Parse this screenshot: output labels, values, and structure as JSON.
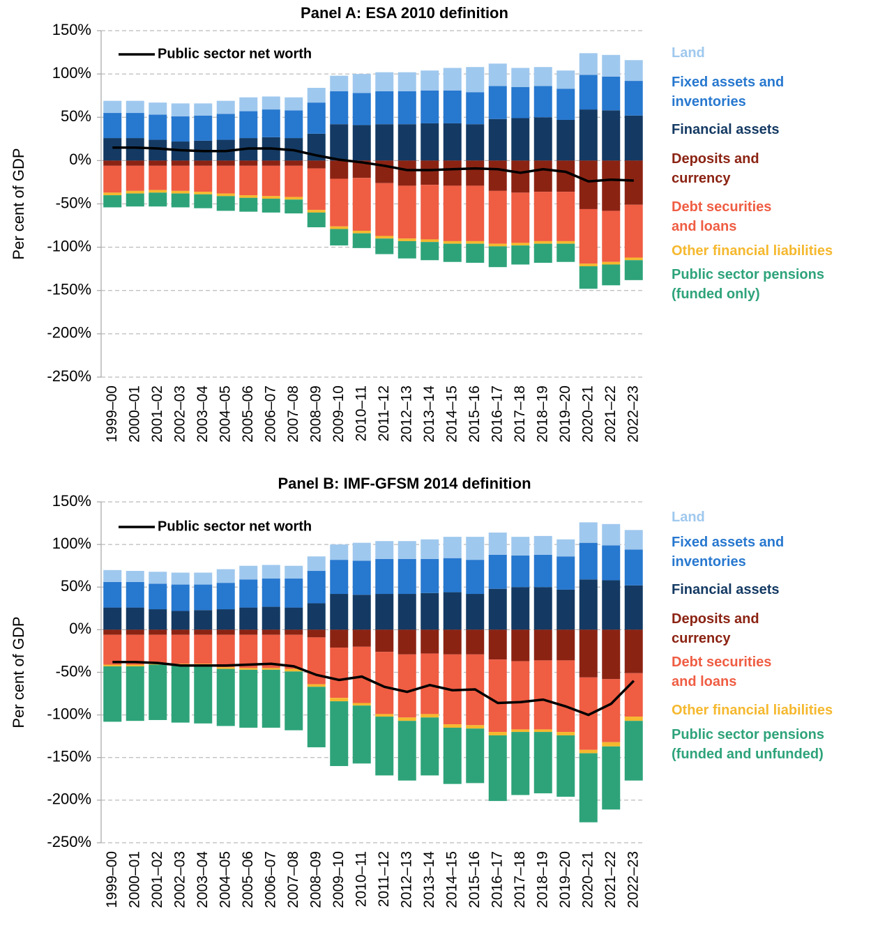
{
  "chart_data": [
    {
      "type": "bar",
      "stacked": true,
      "title": "Panel A: ESA 2010 definition",
      "y_label": "Per cent of GDP",
      "categories": [
        "1999–00",
        "2000–01",
        "2001–02",
        "2002–03",
        "2003–04",
        "2004–05",
        "2005–06",
        "2006–07",
        "2007–08",
        "2008–09",
        "2009–10",
        "2010–11",
        "2011–12",
        "2012–13",
        "2013–14",
        "2014–15",
        "2015–16",
        "2016–17",
        "2017–18",
        "2018–19",
        "2019–20",
        "2020–21",
        "2021–22",
        "2022–23"
      ],
      "series": [
        {
          "name": "Financial assets",
          "color": "#143a63",
          "values": [
            26,
            26,
            24,
            22,
            23,
            24,
            26,
            27,
            26,
            31,
            42,
            41,
            42,
            42,
            43,
            43,
            42,
            48,
            49,
            50,
            47,
            59,
            58,
            52
          ]
        },
        {
          "name": "Fixed assets and\ninventories",
          "color": "#2778cf",
          "values": [
            29,
            29,
            29,
            29,
            29,
            30,
            31,
            32,
            32,
            36,
            38,
            37,
            38,
            38,
            38,
            38,
            37,
            38,
            36,
            36,
            36,
            40,
            39,
            40
          ]
        },
        {
          "name": "Land",
          "color": "#9fc8ee",
          "values": [
            14,
            14,
            14,
            15,
            14,
            15,
            16,
            15,
            15,
            17,
            18,
            22,
            22,
            22,
            23,
            26,
            29,
            26,
            22,
            22,
            21,
            25,
            25,
            24
          ]
        },
        {
          "name": "Deposits and\ncurrency",
          "color": "#8b2313",
          "values": [
            -6,
            -6,
            -6,
            -6,
            -6,
            -6,
            -6,
            -6,
            -6,
            -9,
            -21,
            -20,
            -26,
            -29,
            -28,
            -29,
            -29,
            -35,
            -37,
            -36,
            -36,
            -56,
            -58,
            -51
          ]
        },
        {
          "name": "Debt securities\nand loans",
          "color": "#ef5d43",
          "values": [
            -31,
            -29,
            -28,
            -29,
            -30,
            -32,
            -34,
            -35,
            -36,
            -48,
            -55,
            -61,
            -61,
            -61,
            -63,
            -64,
            -64,
            -61,
            -58,
            -57,
            -57,
            -63,
            -59,
            -61
          ]
        },
        {
          "name": "Other financial liabilities",
          "color": "#f5b82e",
          "values": [
            -3,
            -3,
            -3,
            -3,
            -3,
            -3,
            -3,
            -3,
            -3,
            -3,
            -3,
            -3,
            -3,
            -3,
            -3,
            -3,
            -3,
            -3,
            -3,
            -3,
            -3,
            -3,
            -3,
            -3
          ]
        },
        {
          "name": "Public sector pensions\n(funded only)",
          "color": "#2ea37a",
          "values": [
            -14,
            -15,
            -16,
            -16,
            -16,
            -17,
            -16,
            -16,
            -16,
            -17,
            -19,
            -17,
            -18,
            -20,
            -21,
            -21,
            -22,
            -24,
            -22,
            -22,
            -21,
            -26,
            -24,
            -23
          ]
        }
      ],
      "line": {
        "name": "Public sector net worth",
        "color": "#000000",
        "values": [
          15,
          15,
          14,
          12,
          11,
          11,
          14,
          14,
          12,
          6,
          1,
          -2,
          -6,
          -11,
          -11,
          -10,
          -9,
          -10,
          -14,
          -10,
          -13,
          -24,
          -22,
          -23
        ]
      },
      "ylim": [
        -250,
        150
      ],
      "yticks": [
        {
          "value": -250,
          "label": "-250%"
        },
        {
          "value": -200,
          "label": "-200%"
        },
        {
          "value": -150,
          "label": "-150%"
        },
        {
          "value": -100,
          "label": "-100%"
        },
        {
          "value": -50,
          "label": "-50%"
        },
        {
          "value": 0,
          "label": "0%"
        },
        {
          "value": 50,
          "label": "50%"
        },
        {
          "value": 100,
          "label": "100%"
        },
        {
          "value": 150,
          "label": "150%"
        }
      ],
      "grid": true
    },
    {
      "type": "bar",
      "stacked": true,
      "title": "Panel B: IMF-GFSM 2014 definition",
      "y_label": "Per cent of GDP",
      "categories": [
        "1999–00",
        "2000–01",
        "2001–02",
        "2002–03",
        "2003–04",
        "2004–05",
        "2005–06",
        "2006–07",
        "2007–08",
        "2008–09",
        "2009–10",
        "2010–11",
        "2011–12",
        "2012–13",
        "2013–14",
        "2014–15",
        "2015–16",
        "2016–17",
        "2017–18",
        "2018–19",
        "2019–20",
        "2020–21",
        "2021–22",
        "2022–23"
      ],
      "series": [
        {
          "name": "Financial assets",
          "color": "#143a63",
          "values": [
            26,
            26,
            24,
            22,
            23,
            24,
            26,
            27,
            26,
            31,
            42,
            41,
            42,
            42,
            43,
            44,
            42,
            48,
            50,
            50,
            47,
            59,
            58,
            52
          ]
        },
        {
          "name": "Fixed assets and\ninventories",
          "color": "#2778cf",
          "values": [
            30,
            30,
            30,
            31,
            30,
            31,
            33,
            33,
            34,
            38,
            40,
            40,
            41,
            41,
            40,
            40,
            40,
            40,
            37,
            38,
            39,
            43,
            41,
            42
          ]
        },
        {
          "name": "Land",
          "color": "#9fc8ee",
          "values": [
            14,
            13,
            14,
            14,
            14,
            16,
            16,
            16,
            15,
            17,
            18,
            21,
            21,
            21,
            23,
            25,
            27,
            26,
            22,
            22,
            20,
            24,
            25,
            23
          ]
        },
        {
          "name": "Deposits and\ncurrency",
          "color": "#8b2313",
          "values": [
            -6,
            -6,
            -6,
            -6,
            -6,
            -6,
            -6,
            -6,
            -6,
            -9,
            -21,
            -20,
            -26,
            -29,
            -28,
            -29,
            -29,
            -35,
            -37,
            -36,
            -36,
            -56,
            -58,
            -51
          ]
        },
        {
          "name": "Debt securities\nand loans",
          "color": "#ef5d43",
          "values": [
            -35,
            -35,
            -34,
            -34,
            -34,
            -38,
            -39,
            -39,
            -40,
            -55,
            -59,
            -66,
            -73,
            -74,
            -71,
            -82,
            -83,
            -85,
            -80,
            -81,
            -84,
            -85,
            -74,
            -51
          ]
        },
        {
          "name": "Other financial liabilities",
          "color": "#f5b82e",
          "values": [
            -2,
            -2,
            -1,
            -2,
            -1,
            -2,
            -2,
            -2,
            -3,
            -3,
            -4,
            -3,
            -3,
            -4,
            -4,
            -4,
            -4,
            -4,
            -3,
            -3,
            -4,
            -4,
            -5,
            -5
          ]
        },
        {
          "name": "Public sector pensions\n(funded and unfunded)",
          "color": "#2ea37a",
          "values": [
            -65,
            -64,
            -65,
            -67,
            -69,
            -67,
            -68,
            -68,
            -69,
            -71,
            -76,
            -68,
            -69,
            -70,
            -68,
            -66,
            -64,
            -77,
            -74,
            -72,
            -72,
            -81,
            -74,
            -70
          ]
        }
      ],
      "line": {
        "name": "Public sector net worth",
        "color": "#000000",
        "values": [
          -38,
          -38,
          -39,
          -42,
          -42,
          -42,
          -41,
          -40,
          -43,
          -53,
          -59,
          -55,
          -67,
          -73,
          -65,
          -71,
          -70,
          -86,
          -85,
          -82,
          -90,
          -100,
          -87,
          -60
        ]
      },
      "ylim": [
        -250,
        150
      ],
      "yticks": [
        {
          "value": -250,
          "label": "-250%"
        },
        {
          "value": -200,
          "label": "-200%"
        },
        {
          "value": -150,
          "label": "-150%"
        },
        {
          "value": -100,
          "label": "-100%"
        },
        {
          "value": -50,
          "label": "-50%"
        },
        {
          "value": 0,
          "label": "0%"
        },
        {
          "value": 50,
          "label": "50%"
        },
        {
          "value": 100,
          "label": "100%"
        },
        {
          "value": 150,
          "label": "150%"
        }
      ],
      "grid": true
    }
  ]
}
